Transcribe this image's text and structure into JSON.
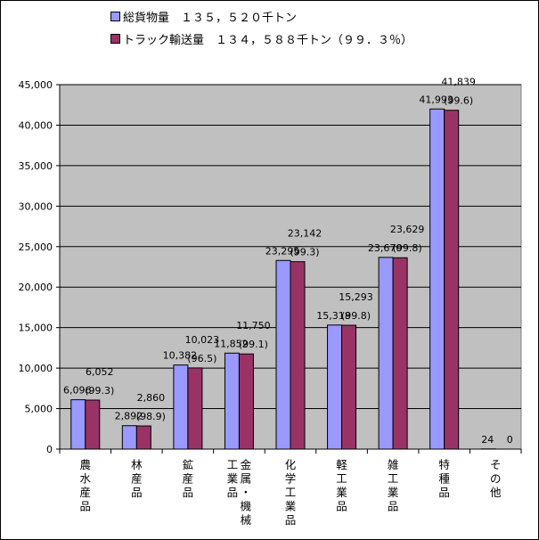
{
  "chart_data": {
    "type": "bar",
    "categories": [
      [
        "農",
        "水",
        "産",
        "品"
      ],
      [
        "林",
        "産",
        "品"
      ],
      [
        "鉱",
        "産",
        "品"
      ],
      [
        "金",
        "属",
        "・",
        "機",
        "械",
        "|",
        "工",
        "業",
        "品"
      ],
      [
        "化",
        "学",
        "工",
        "業",
        "品"
      ],
      [
        "軽",
        "工",
        "業",
        "品"
      ],
      [
        "雑",
        "工",
        "業",
        "品"
      ],
      [
        "特",
        "種",
        "品"
      ],
      [
        "そ",
        "の",
        "他"
      ]
    ],
    "series": [
      {
        "name": "総貨物量　１３５，５２０千トン",
        "color": "#9999ff",
        "values": [
          6096,
          2892,
          10382,
          11852,
          23295,
          15318,
          23670,
          41993,
          24
        ],
        "labels": [
          "6,096",
          "2,892",
          "10,382",
          "11,852",
          "23,295",
          "15,318",
          "23,670",
          "41,993",
          "24"
        ]
      },
      {
        "name": "トラック輸送量　１３４，５８８千トン（９９．３％）",
        "color": "#993366",
        "values": [
          6052,
          2860,
          10023,
          11750,
          23142,
          15293,
          23629,
          41839,
          0
        ],
        "labels": [
          "6,052",
          "2,860",
          "10,023",
          "11,750",
          "23,142",
          "15,293",
          "23,629",
          "41,839",
          "0"
        ],
        "pct_labels": [
          "(99.3)",
          "(98.9)",
          "(96.5)",
          "(99.1)",
          "(99.3)",
          "(99.8)",
          "(99.8)",
          "(99.6)",
          ""
        ]
      }
    ],
    "ylim": [
      0,
      45000
    ],
    "yticks": [
      "0",
      "5,000",
      "10,000",
      "15,000",
      "20,000",
      "25,000",
      "30,000",
      "35,000",
      "40,000",
      "45,000"
    ],
    "ytick_values": [
      0,
      5000,
      10000,
      15000,
      20000,
      25000,
      30000,
      35000,
      40000,
      45000
    ],
    "grid": true,
    "legend_position": "top",
    "plot_background": "#c0c0c0"
  }
}
